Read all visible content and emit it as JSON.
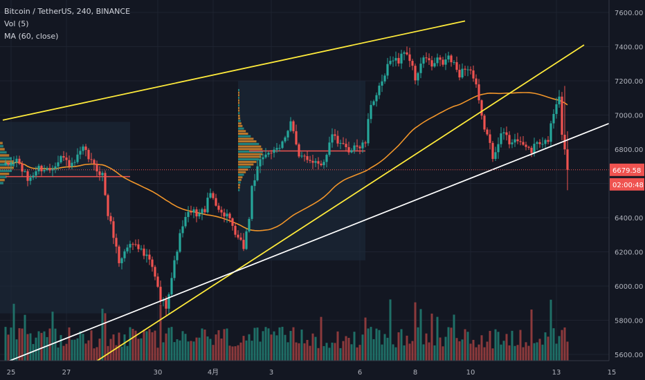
{
  "legend": {
    "symbol": "Bitcoin / TetherUS, 240, BINANCE",
    "volume": "Vol (5)",
    "ma": "MA (60, close)"
  },
  "colors": {
    "background": "#131722",
    "up": "#26a69a",
    "down": "#ef5350",
    "ma_line": "#f2962a",
    "trend_yellow": "#ffeb3b",
    "trend_white": "#ffffff",
    "vol_up": "#1f6f67",
    "vol_down": "#8c3a3c",
    "profile_box": "#1e2b3c",
    "price_line": "#ef5350"
  },
  "chart_data": {
    "type": "candlestick",
    "title": "Bitcoin / TetherUS, 240, BINANCE",
    "y_ticks": [
      5600,
      5800,
      6000,
      6200,
      6400,
      6600,
      6800,
      7000,
      7200,
      7400,
      7600
    ],
    "y_tick_labels": [
      "5600.00",
      "5800.00",
      "6000.00",
      "6200.00",
      "6400.00",
      "6600.00",
      "6800.00",
      "7000.00",
      "7200.00",
      "7400.00",
      "7600.00"
    ],
    "ylim": [
      5560,
      7660
    ],
    "x_ticks": [
      {
        "label": "25",
        "bar": 2
      },
      {
        "label": "27",
        "bar": 22
      },
      {
        "label": "30",
        "bar": 55
      },
      {
        "label": "4月",
        "bar": 75
      },
      {
        "label": "3",
        "bar": 96
      },
      {
        "label": "6",
        "bar": 128
      },
      {
        "label": "8",
        "bar": 148
      },
      {
        "label": "10",
        "bar": 168
      },
      {
        "label": "13",
        "bar": 199
      },
      {
        "label": "15",
        "bar": 219
      }
    ],
    "bar_count": 221,
    "close_keypoints": [
      [
        0,
        6700
      ],
      [
        4,
        6740
      ],
      [
        8,
        6620
      ],
      [
        12,
        6690
      ],
      [
        16,
        6680
      ],
      [
        20,
        6760
      ],
      [
        24,
        6700
      ],
      [
        28,
        6800
      ],
      [
        32,
        6700
      ],
      [
        35,
        6650
      ],
      [
        37,
        6420
      ],
      [
        39,
        6300
      ],
      [
        41,
        6140
      ],
      [
        44,
        6230
      ],
      [
        47,
        6260
      ],
      [
        50,
        6180
      ],
      [
        52,
        6150
      ],
      [
        54,
        6050
      ],
      [
        56,
        5920
      ],
      [
        58,
        5890
      ],
      [
        60,
        6050
      ],
      [
        62,
        6220
      ],
      [
        64,
        6360
      ],
      [
        66,
        6420
      ],
      [
        68,
        6430
      ],
      [
        70,
        6420
      ],
      [
        72,
        6450
      ],
      [
        74,
        6540
      ],
      [
        76,
        6490
      ],
      [
        78,
        6420
      ],
      [
        80,
        6420
      ],
      [
        82,
        6330
      ],
      [
        84,
        6270
      ],
      [
        86,
        6230
      ],
      [
        88,
        6400
      ],
      [
        89,
        6580
      ],
      [
        91,
        6680
      ],
      [
        93,
        6760
      ],
      [
        95,
        6790
      ],
      [
        97,
        6780
      ],
      [
        99,
        6800
      ],
      [
        101,
        6880
      ],
      [
        103,
        6970
      ],
      [
        104,
        6900
      ],
      [
        106,
        6740
      ],
      [
        108,
        6760
      ],
      [
        110,
        6740
      ],
      [
        112,
        6730
      ],
      [
        114,
        6720
      ],
      [
        116,
        6760
      ],
      [
        118,
        6900
      ],
      [
        120,
        6820
      ],
      [
        122,
        6820
      ],
      [
        124,
        6790
      ],
      [
        126,
        6830
      ],
      [
        128,
        6810
      ],
      [
        130,
        6840
      ],
      [
        132,
        7070
      ],
      [
        134,
        7120
      ],
      [
        136,
        7180
      ],
      [
        138,
        7280
      ],
      [
        140,
        7340
      ],
      [
        142,
        7310
      ],
      [
        144,
        7380
      ],
      [
        146,
        7330
      ],
      [
        148,
        7210
      ],
      [
        150,
        7300
      ],
      [
        152,
        7340
      ],
      [
        154,
        7280
      ],
      [
        156,
        7320
      ],
      [
        158,
        7300
      ],
      [
        160,
        7340
      ],
      [
        162,
        7290
      ],
      [
        164,
        7240
      ],
      [
        166,
        7280
      ],
      [
        168,
        7260
      ],
      [
        170,
        7160
      ],
      [
        172,
        6980
      ],
      [
        174,
        6880
      ],
      [
        176,
        6760
      ],
      [
        178,
        6850
      ],
      [
        180,
        6900
      ],
      [
        182,
        6840
      ],
      [
        184,
        6870
      ],
      [
        186,
        6820
      ],
      [
        188,
        6820
      ],
      [
        190,
        6790
      ],
      [
        192,
        6840
      ],
      [
        194,
        6820
      ],
      [
        196,
        6860
      ],
      [
        198,
        7020
      ],
      [
        200,
        7120
      ],
      [
        201,
        6900
      ],
      [
        203,
        6680
      ]
    ],
    "last_price": 6679.58,
    "last_price_label": "6679.58",
    "countdown": "02:00:48",
    "ma_period": 60,
    "volume_period": 5,
    "trendlines": [
      {
        "color": "yellow",
        "from": {
          "bar": -1,
          "price": 6970
        },
        "to": {
          "bar": 166,
          "price": 7550
        }
      },
      {
        "color": "yellow",
        "from": {
          "bar": 29,
          "price": 5520
        },
        "to": {
          "bar": 209,
          "price": 7410
        }
      },
      {
        "color": "white",
        "from": {
          "bar": 1,
          "price": 5560
        },
        "to": {
          "bar": 221,
          "price": 6970
        }
      }
    ]
  },
  "axis": {
    "last_price_label": "6679.58",
    "countdown": "02:00:48"
  }
}
